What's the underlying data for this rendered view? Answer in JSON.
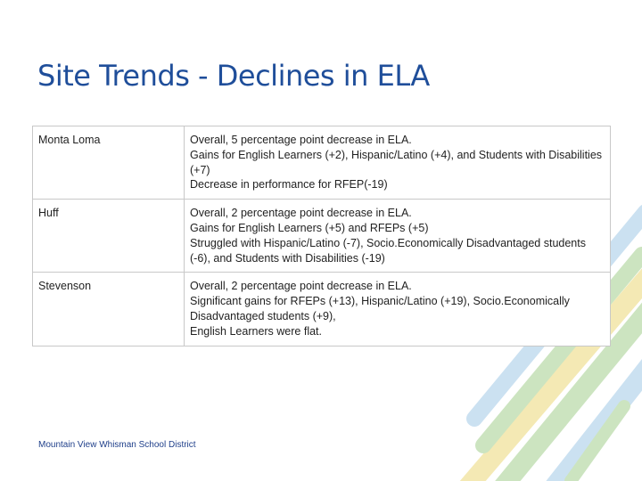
{
  "title": "Site Trends - Declines in ELA",
  "rows": [
    {
      "site": "Monta Loma",
      "lines": [
        "Overall, 5 percentage point decrease in ELA.",
        "Gains for English Learners (+2), Hispanic/Latino (+4), and Students with Disabilities (+7)",
        "Decrease in performance for  RFEP(-19)"
      ]
    },
    {
      "site": "Huff",
      "lines": [
        "Overall, 2 percentage point decrease in ELA.",
        "Gains for English Learners (+5) and RFEPs (+5)",
        "Struggled with Hispanic/Latino (-7), Socio.Economically Disadvantaged students (-6), and  Students with Disabilities (-19)"
      ]
    },
    {
      "site": "Stevenson",
      "lines": [
        "Overall, 2 percentage point decrease in ELA.",
        "Significant gains for RFEPs (+13), Hispanic/Latino (+19), Socio.Economically Disadvantaged students (+9),",
        "English Learners were flat."
      ]
    }
  ],
  "footer": "Mountain View Whisman School District",
  "colors": {
    "title": "#1f4e9a",
    "stripe_green": "#c4e0b6",
    "stripe_blue": "#c2dcef",
    "stripe_yellow": "#f3e6a8"
  }
}
